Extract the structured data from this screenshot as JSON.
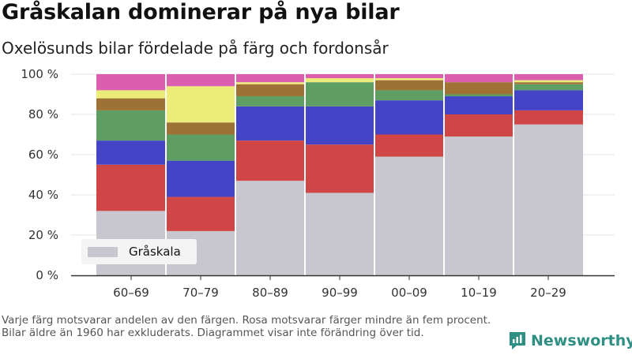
{
  "header": {
    "title": "Gråskalan dominerar på nya bilar",
    "subtitle": "Oxelösunds bilar fördelade på färg och fordonsår"
  },
  "legend": {
    "label": "Gråskala"
  },
  "footnote": "Varje färg motsvarar andelen av den färgen. Rosa motsvarar färger mindre än fem procent. Bilar äldre än 1960 har exkluderats. Diagrammet visar inte förändring över tid.",
  "brand": {
    "name": "Newsworthy",
    "icon": "newsworthy-logo-icon"
  },
  "colors": {
    "grayscale": "#c8c7cf",
    "red": "#d04545",
    "blue": "#4444c6",
    "green": "#5f9e62",
    "brown": "#9e7134",
    "yellow": "#ecec78",
    "pink": "#db5fae",
    "axis": "#333333",
    "brand": "#2f8f83"
  },
  "chart_data": {
    "type": "bar",
    "stacked": true,
    "categories": [
      "60–69",
      "70–79",
      "80–89",
      "90–99",
      "00–09",
      "10–19",
      "20–29"
    ],
    "ylim": [
      0,
      100
    ],
    "yticks": [
      0,
      20,
      40,
      60,
      80,
      100
    ],
    "ytick_labels": [
      "0 %",
      "20 %",
      "40 %",
      "60 %",
      "80 %",
      "100 %"
    ],
    "series": [
      {
        "name": "Gråskala",
        "color": "#c8c7cf",
        "values": [
          32,
          22,
          47,
          41,
          59,
          69,
          75
        ]
      },
      {
        "color": "#d04545",
        "values": [
          23,
          17,
          20,
          24,
          11,
          11,
          7
        ]
      },
      {
        "color": "#4444c6",
        "values": [
          12,
          18,
          17,
          19,
          17,
          9,
          10
        ]
      },
      {
        "color": "#5f9e62",
        "values": [
          15,
          13,
          5,
          12,
          5,
          1,
          3
        ]
      },
      {
        "color": "#9e7134",
        "values": [
          6,
          6,
          6,
          0,
          5,
          6,
          1
        ]
      },
      {
        "color": "#ecec78",
        "values": [
          4,
          18,
          1,
          2,
          1,
          0,
          1
        ]
      },
      {
        "color": "#db5fae",
        "values": [
          8,
          6,
          4,
          2,
          2,
          4,
          3
        ]
      }
    ],
    "legend_position": "bottom-left",
    "grid": true
  }
}
